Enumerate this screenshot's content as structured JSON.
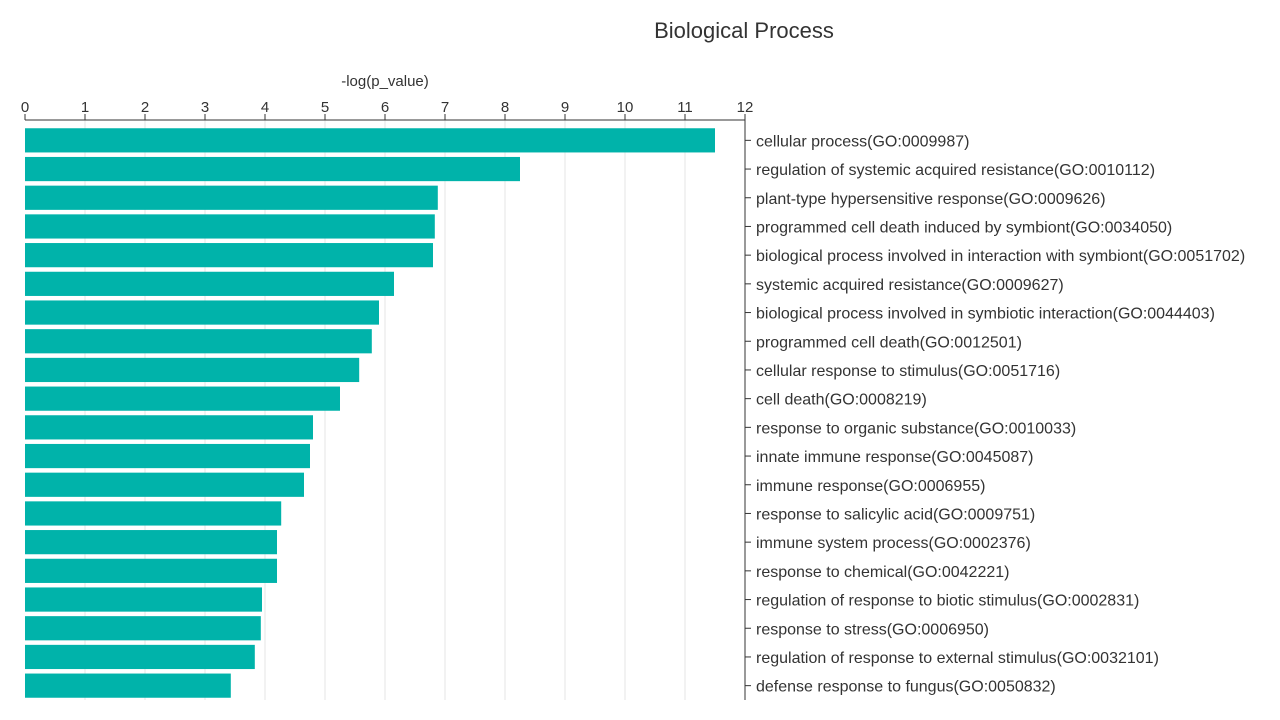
{
  "chart_data": {
    "type": "bar",
    "orientation": "horizontal",
    "title": "Biological Process",
    "xlabel": "-log(p_value)",
    "ylabel": "",
    "xlim": [
      0,
      12
    ],
    "xticks": [
      0,
      1,
      2,
      3,
      4,
      5,
      6,
      7,
      8,
      9,
      10,
      11,
      12
    ],
    "grid": true,
    "axis_position": "top",
    "bar_color": "#00b3aa",
    "categories": [
      "cellular process(GO:0009987)",
      "regulation of systemic acquired resistance(GO:0010112)",
      "plant-type hypersensitive response(GO:0009626)",
      "programmed cell death induced by symbiont(GO:0034050)",
      "biological process involved in interaction with symbiont(GO:0051702)",
      "systemic acquired resistance(GO:0009627)",
      "biological process involved in symbiotic interaction(GO:0044403)",
      "programmed cell death(GO:0012501)",
      "cellular response to stimulus(GO:0051716)",
      "cell death(GO:0008219)",
      "response to organic substance(GO:0010033)",
      "innate immune response(GO:0045087)",
      "immune response(GO:0006955)",
      "response to salicylic acid(GO:0009751)",
      "immune system process(GO:0002376)",
      "response to chemical(GO:0042221)",
      "regulation of response to biotic stimulus(GO:0002831)",
      "response to stress(GO:0006950)",
      "regulation of response to external stimulus(GO:0032101)",
      "defense response to fungus(GO:0050832)"
    ],
    "values": [
      11.5,
      8.25,
      6.88,
      6.83,
      6.8,
      6.15,
      5.9,
      5.78,
      5.57,
      5.25,
      4.8,
      4.75,
      4.65,
      4.27,
      4.2,
      4.2,
      3.95,
      3.93,
      3.83,
      3.43
    ]
  }
}
